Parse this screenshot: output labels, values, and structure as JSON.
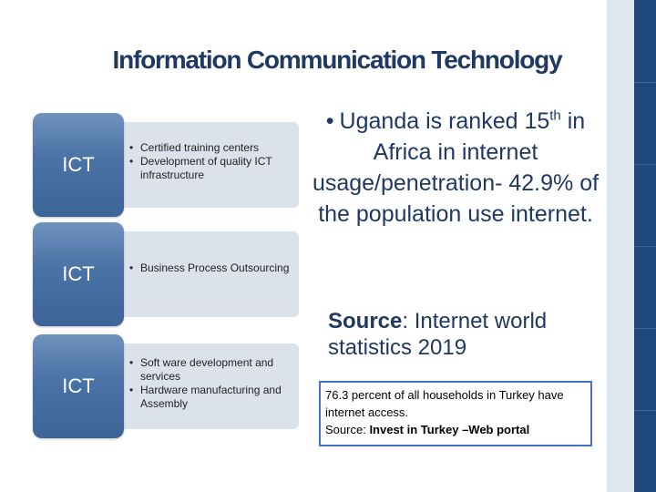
{
  "title": "Information Communication Technology",
  "rows": [
    {
      "label": "ICT",
      "bullets": [
        "Certified training centers",
        "Development of quality ICT infrastructure"
      ]
    },
    {
      "label": "ICT",
      "bullets": [
        "Business Process Outsourcing"
      ]
    },
    {
      "label": "ICT",
      "bullets": [
        "Soft ware development and services",
        "Hardware manufacturing and Assembly"
      ]
    }
  ],
  "uganda": {
    "bullet": "•",
    "line_pre": "Uganda is ranked 15",
    "line_sup": "th",
    "line_rest": "in Africa in internet usage/penetration- 42.9% of the population use internet.",
    "source_label": "Source",
    "source_text": ": Internet world statistics 2019"
  },
  "turkey": {
    "text": "76.3 percent of all households in Turkey have internet access.",
    "source_label": "Source:",
    "source_text": "Invest in Turkey –Web portal"
  },
  "colors": {
    "title": "#1f3864",
    "ict_box": "#4a72a5",
    "text_box": "#dbe2ec",
    "band_dark": "#1f497d",
    "turkey_border": "#4472c4"
  }
}
